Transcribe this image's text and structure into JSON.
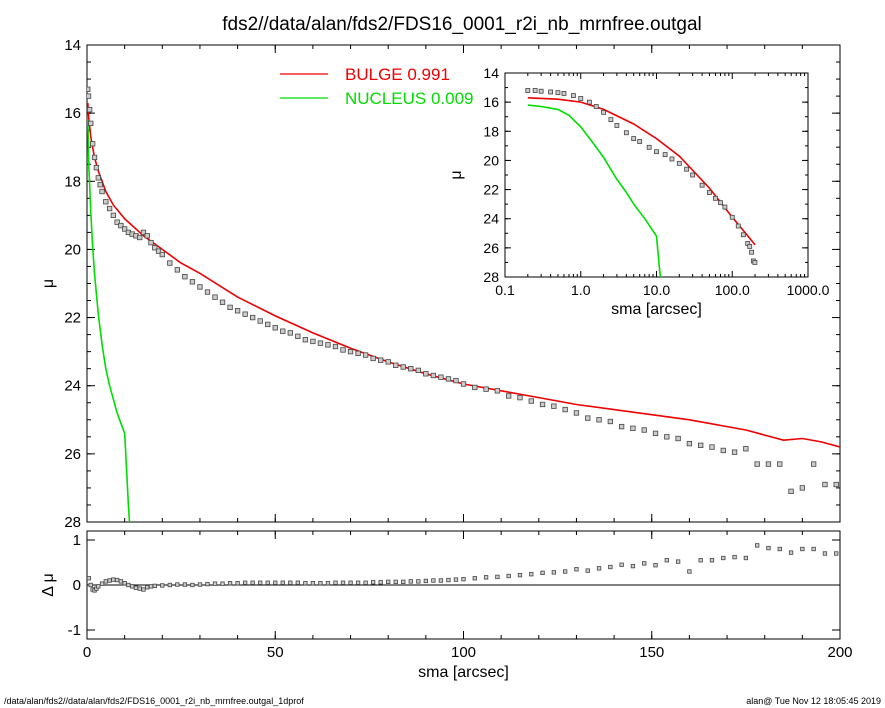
{
  "title": "fds2//data/alan/fds2/FDS16_0001_r2i_nb_mrnfree.outgal",
  "footer_left": "/data/alan/fds2//data/alan/fds2/FDS16_0001_r2i_nb_mrnfree.outgal_1dprof",
  "footer_right": "alan@  Tue Nov 12 18:05:45 2019",
  "colors": {
    "bulge": "#ee0000",
    "nucleus": "#00dd00",
    "data": "#555555"
  },
  "chart_data": [
    {
      "type": "line",
      "panel": "main",
      "xlabel": "",
      "ylabel": "μ",
      "xlim": [
        0,
        200
      ],
      "ylim": [
        28,
        14
      ],
      "yticks": [
        14,
        16,
        18,
        20,
        22,
        24,
        26,
        28
      ],
      "xticks": [
        0,
        50,
        100,
        150,
        200
      ],
      "legend": {
        "position": "top-center",
        "entries": [
          {
            "label": "BULGE  0.991",
            "color": "#ee0000"
          },
          {
            "label": "NUCLEUS  0.009",
            "color": "#00dd00"
          }
        ]
      },
      "series": [
        {
          "name": "BULGE  0.991",
          "style": "line",
          "color": "#ee0000",
          "x": [
            0.2,
            0.5,
            1,
            2,
            3,
            4,
            5,
            7,
            10,
            15,
            20,
            25,
            30,
            40,
            50,
            60,
            70,
            80,
            90,
            100,
            110,
            120,
            130,
            140,
            150,
            160,
            165,
            170,
            175,
            180,
            185,
            190,
            195,
            200
          ],
          "y": [
            15.7,
            16.2,
            16.7,
            17.3,
            17.7,
            18.0,
            18.3,
            18.7,
            19.1,
            19.6,
            20.0,
            20.4,
            20.7,
            21.4,
            21.95,
            22.45,
            22.9,
            23.3,
            23.65,
            23.95,
            24.15,
            24.35,
            24.55,
            24.7,
            24.85,
            25.0,
            25.1,
            25.2,
            25.3,
            25.45,
            25.6,
            25.55,
            25.65,
            25.8
          ]
        },
        {
          "name": "NUCLEUS  0.009",
          "style": "line",
          "color": "#00dd00",
          "x": [
            0.2,
            0.5,
            1,
            1.5,
            2,
            3,
            4,
            5,
            6,
            7,
            8,
            9,
            10,
            11,
            11.3
          ],
          "y": [
            16.2,
            17.6,
            18.9,
            19.9,
            20.7,
            21.9,
            22.8,
            23.5,
            24.0,
            24.4,
            24.8,
            25.1,
            25.4,
            27.5,
            28.0
          ]
        },
        {
          "name": "",
          "style": "points",
          "color": "#555555",
          "x": [
            0.2,
            0.4,
            0.7,
            1,
            1.5,
            2,
            2.5,
            3,
            3.5,
            4,
            5,
            6,
            7,
            8,
            9,
            10,
            11,
            12,
            13,
            14,
            15,
            16,
            17,
            18,
            19,
            20,
            22,
            24,
            26,
            28,
            30,
            32,
            34,
            36,
            38,
            40,
            42,
            44,
            46,
            48,
            50,
            52,
            54,
            56,
            58,
            60,
            62,
            64,
            66,
            68,
            70,
            72,
            74,
            76,
            78,
            80,
            82,
            84,
            86,
            88,
            90,
            92,
            94,
            96,
            98,
            100,
            103,
            106,
            109,
            112,
            115,
            118,
            121,
            124,
            127,
            130,
            133,
            136,
            139,
            142,
            145,
            148,
            151,
            154,
            157,
            160,
            163,
            166,
            169,
            172,
            175,
            178,
            181,
            184,
            187,
            190,
            193,
            196,
            199
          ],
          "y": [
            15.3,
            15.5,
            15.9,
            16.3,
            16.9,
            17.3,
            17.6,
            17.9,
            18.1,
            18.3,
            18.6,
            18.8,
            19.0,
            19.2,
            19.3,
            19.4,
            19.5,
            19.55,
            19.6,
            19.65,
            19.5,
            19.6,
            19.8,
            19.95,
            20.05,
            20.15,
            20.4,
            20.6,
            20.8,
            20.95,
            21.1,
            21.25,
            21.4,
            21.55,
            21.7,
            21.8,
            21.9,
            22.0,
            22.1,
            22.2,
            22.3,
            22.4,
            22.45,
            22.55,
            22.65,
            22.7,
            22.75,
            22.8,
            22.85,
            22.95,
            23.0,
            23.05,
            23.1,
            23.2,
            23.25,
            23.3,
            23.4,
            23.45,
            23.5,
            23.55,
            23.65,
            23.7,
            23.75,
            23.8,
            23.85,
            23.95,
            24.05,
            24.1,
            24.15,
            24.3,
            24.35,
            24.45,
            24.55,
            24.6,
            24.7,
            24.8,
            24.95,
            25.0,
            25.05,
            25.2,
            25.25,
            25.3,
            25.4,
            25.5,
            25.55,
            25.7,
            25.75,
            25.8,
            25.9,
            25.95,
            25.85,
            26.3,
            26.3,
            26.3,
            27.1,
            27.0,
            26.3,
            26.9,
            26.9
          ]
        }
      ]
    },
    {
      "type": "scatter",
      "panel": "residual",
      "xlabel": "sma [arcsec]",
      "ylabel": "Δ μ",
      "xlim": [
        0,
        200
      ],
      "ylim": [
        -1.2,
        1.2
      ],
      "yticks": [
        -1,
        0,
        1
      ],
      "xticks": [
        0,
        50,
        100,
        150,
        200
      ],
      "zero_line": true,
      "series": [
        {
          "name": "",
          "style": "points",
          "color": "#555555",
          "x": [
            0.5,
            1,
            1.5,
            2,
            2.5,
            3,
            4,
            5,
            6,
            7,
            8,
            9,
            10,
            11,
            12,
            13,
            14,
            15,
            16,
            17,
            18,
            20,
            22,
            24,
            26,
            28,
            30,
            32,
            34,
            36,
            38,
            40,
            42,
            44,
            46,
            48,
            50,
            52,
            54,
            56,
            58,
            60,
            62,
            64,
            66,
            68,
            70,
            72,
            74,
            76,
            78,
            80,
            82,
            84,
            86,
            88,
            90,
            92,
            94,
            96,
            98,
            100,
            103,
            106,
            109,
            112,
            115,
            118,
            121,
            124,
            127,
            130,
            133,
            136,
            139,
            142,
            145,
            148,
            151,
            154,
            157,
            160,
            163,
            166,
            169,
            172,
            175,
            178,
            181,
            184,
            187,
            190,
            193,
            196,
            199
          ],
          "y": [
            0.15,
            0.0,
            -0.1,
            -0.12,
            -0.08,
            -0.03,
            0.03,
            0.08,
            0.1,
            0.12,
            0.11,
            0.08,
            0.04,
            0.0,
            -0.03,
            -0.06,
            -0.08,
            -0.1,
            -0.05,
            -0.03,
            -0.02,
            -0.01,
            0.0,
            0.01,
            0.01,
            0.0,
            0.01,
            0.02,
            0.03,
            0.03,
            0.04,
            0.04,
            0.05,
            0.05,
            0.05,
            0.05,
            0.05,
            0.05,
            0.05,
            0.05,
            0.04,
            0.04,
            0.04,
            0.04,
            0.05,
            0.05,
            0.05,
            0.05,
            0.05,
            0.06,
            0.06,
            0.07,
            0.07,
            0.07,
            0.08,
            0.08,
            0.09,
            0.1,
            0.1,
            0.11,
            0.12,
            0.13,
            0.15,
            0.17,
            0.18,
            0.2,
            0.22,
            0.24,
            0.27,
            0.28,
            0.3,
            0.35,
            0.32,
            0.37,
            0.4,
            0.45,
            0.42,
            0.48,
            0.44,
            0.55,
            0.52,
            0.3,
            0.55,
            0.55,
            0.6,
            0.62,
            0.6,
            0.88,
            0.82,
            0.8,
            0.72,
            0.8,
            0.8,
            0.7,
            0.7
          ]
        }
      ]
    },
    {
      "type": "line",
      "panel": "inset",
      "xlabel": "sma [arcsec]",
      "ylabel": "μ",
      "xscale": "log",
      "xlim": [
        0.1,
        1000
      ],
      "ylim": [
        28,
        14
      ],
      "yticks": [
        14,
        16,
        18,
        20,
        22,
        24,
        26,
        28
      ],
      "xticks": [
        0.1,
        1,
        10,
        100,
        1000
      ],
      "xtick_labels": [
        "0.1",
        "1.0",
        "10.0",
        "100.0",
        "1000.0"
      ],
      "series": [
        {
          "name": "",
          "style": "line",
          "color": "#ee0000",
          "x": [
            0.2,
            0.5,
            1,
            2,
            5,
            10,
            20,
            50,
            100,
            150,
            200
          ],
          "y": [
            15.7,
            15.8,
            16.0,
            16.5,
            17.5,
            18.5,
            19.7,
            21.9,
            23.9,
            25.0,
            25.8
          ]
        },
        {
          "name": "",
          "style": "line",
          "color": "#00dd00",
          "x": [
            0.2,
            0.3,
            0.5,
            0.7,
            1,
            1.5,
            2,
            3,
            4,
            5,
            7,
            10,
            11,
            11.3
          ],
          "y": [
            16.2,
            16.3,
            16.5,
            16.9,
            17.7,
            18.9,
            19.8,
            21.3,
            22.2,
            23.0,
            24.0,
            25.2,
            27.5,
            28.0
          ]
        },
        {
          "name": "",
          "style": "points",
          "color": "#555555",
          "x": [
            0.2,
            0.25,
            0.3,
            0.4,
            0.5,
            0.6,
            0.8,
            1,
            1.3,
            1.6,
            2,
            2.5,
            3,
            4,
            5,
            6,
            8,
            10,
            13,
            16,
            20,
            25,
            30,
            40,
            50,
            60,
            70,
            80,
            100,
            120,
            140,
            160,
            170,
            180,
            190,
            199
          ],
          "y": [
            15.2,
            15.2,
            15.25,
            15.3,
            15.35,
            15.4,
            15.55,
            15.75,
            16.0,
            16.3,
            16.7,
            17.2,
            17.6,
            18.1,
            18.5,
            18.7,
            19.1,
            19.4,
            19.6,
            19.9,
            20.2,
            20.6,
            21.0,
            21.7,
            22.2,
            22.6,
            22.9,
            23.2,
            23.9,
            24.5,
            25.1,
            25.7,
            25.9,
            26.3,
            26.9,
            27.0
          ]
        }
      ]
    }
  ]
}
